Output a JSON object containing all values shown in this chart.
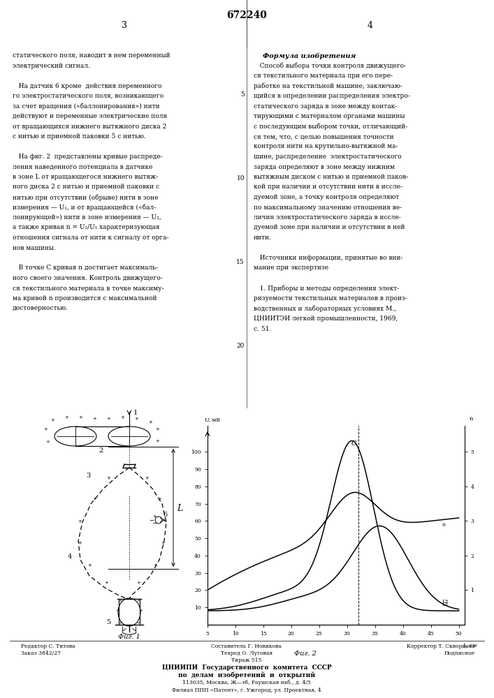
{
  "page_width": 7.07,
  "page_height": 10.0,
  "bg_color": "#ffffff",
  "patent_number": "672240",
  "fig1_label": "Фиг. 1",
  "fig2_label": "Фиг. 2",
  "bottom_editor": "Редактор С. Титова",
  "bottom_order": "Заказ 3842/27",
  "bottom_composer": "Составитель Г. Новикова",
  "bottom_typist": "Техред О. Луговая",
  "bottom_circulation": "Тираж 515",
  "bottom_corrector": "Корректор Т. Скворцова",
  "bottom_podp": "Подписное",
  "bottom_org": "ЦНИИПИ  Государственного  комитета  СССР",
  "bottom_org2": "по  делам  изобретений  и  открытий",
  "bottom_addr": "113035, Москва, Ж—зб, Раушская наб., д. 4/5",
  "bottom_filial": "Филиал ППП «Патент», г. Ужгород, ул. Проектная, 4"
}
